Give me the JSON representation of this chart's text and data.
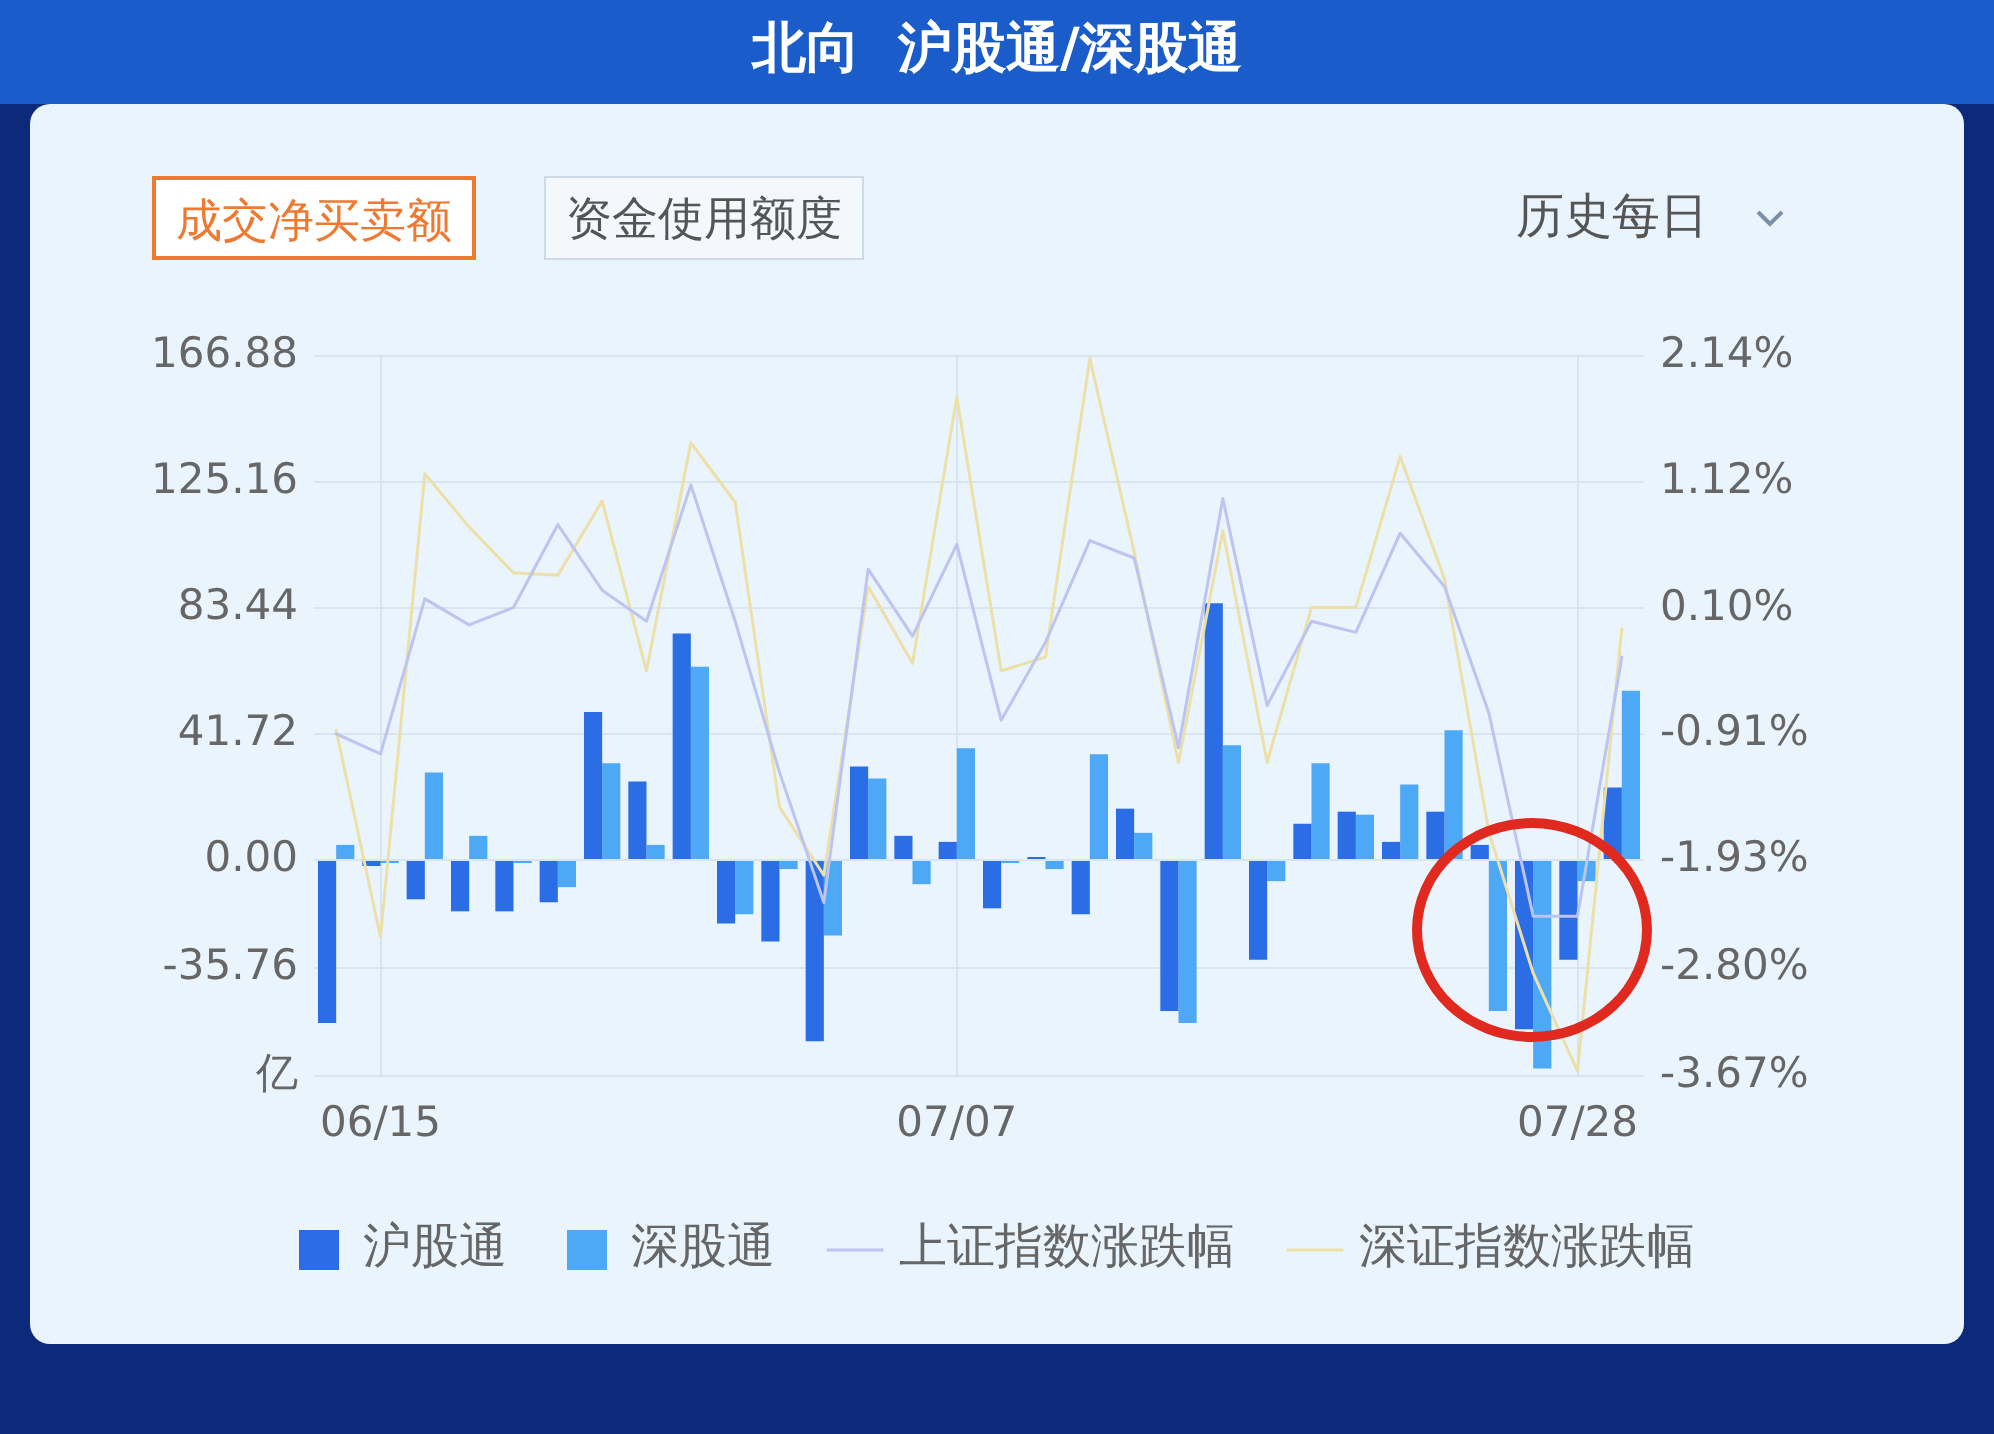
{
  "chart_data": {
    "type": "bar",
    "title": "北向  沪股通/深股通",
    "annotations": [
      "成交净买卖额",
      "资金使用额度",
      "历史每日"
    ],
    "categories": [
      null,
      "06/15",
      null,
      null,
      null,
      null,
      null,
      null,
      null,
      null,
      null,
      null,
      null,
      null,
      "07/07",
      null,
      null,
      null,
      null,
      null,
      null,
      null,
      null,
      null,
      null,
      null,
      null,
      null,
      "07/28",
      null
    ],
    "series": [
      {
        "name": "沪股通",
        "color": "#2b6de5",
        "values": [
          -54,
          -2,
          -13,
          -17,
          -17,
          -14,
          49,
          26,
          75,
          -21,
          -27,
          -60,
          31,
          8,
          6,
          -16,
          1,
          -18,
          17,
          -50,
          85,
          -33,
          12,
          16,
          6,
          16,
          5,
          -56,
          -33,
          24
        ]
      },
      {
        "name": "深股通",
        "color": "#4da8f5",
        "values": [
          5,
          -1,
          29,
          8,
          -1,
          -9,
          32,
          5,
          64,
          -18,
          -3,
          -25,
          27,
          -8,
          37,
          -1,
          -3,
          35,
          9,
          -54,
          38,
          -7,
          32,
          15,
          25,
          43,
          -50,
          -69,
          -7,
          56
        ]
      },
      {
        "name": "上证指数涨跌幅",
        "type": "line",
        "axis": "y2",
        "color": "#bcc4ef",
        "values": [
          -0.91,
          -1.07,
          0.18,
          -0.03,
          0.11,
          0.78,
          0.25,
          0.0,
          1.1,
          0.0,
          -1.22,
          -2.27,
          0.42,
          -0.12,
          0.62,
          -0.8,
          -0.17,
          0.65,
          0.51,
          -1.02,
          0.99,
          -0.68,
          0.0,
          -0.09,
          0.71,
          0.28,
          -0.74,
          -2.38,
          -2.38,
          -0.29
        ]
      },
      {
        "name": "深证指数涨跌幅",
        "type": "line",
        "axis": "y2",
        "color": "#ece0a8",
        "values": [
          -0.88,
          -2.55,
          1.19,
          0.76,
          0.39,
          0.37,
          0.97,
          -0.4,
          1.44,
          0.96,
          -1.5,
          -2.05,
          0.28,
          -0.34,
          1.81,
          -0.4,
          -0.29,
          2.12,
          0.56,
          -1.14,
          0.73,
          -1.14,
          0.11,
          0.11,
          1.33,
          0.34,
          -1.7,
          -2.84,
          -3.63,
          -0.06
        ]
      }
    ],
    "ylim": [
      -71.52,
      166.88
    ],
    "yticks": [
      {
        "value": -71.52,
        "label": "亿"
      },
      -35.76,
      {
        "value": 0,
        "label": "0.00"
      },
      41.72,
      83.44,
      125.16,
      166.88
    ],
    "y2lim": [
      -3.67,
      2.14
    ],
    "y2ticks": [
      {
        "value": -3.67,
        "label": "-3.67%"
      },
      {
        "value": -2.8,
        "label": "-2.80%"
      },
      {
        "value": -1.93,
        "label": "-1.93%"
      },
      {
        "value": -0.91,
        "label": "-0.91%"
      },
      {
        "value": 0.1,
        "label": "0.10%"
      },
      {
        "value": 1.12,
        "label": "1.12%"
      },
      {
        "value": 2.14,
        "label": "2.14%"
      }
    ],
    "grid": true,
    "legend": "bottom"
  }
}
